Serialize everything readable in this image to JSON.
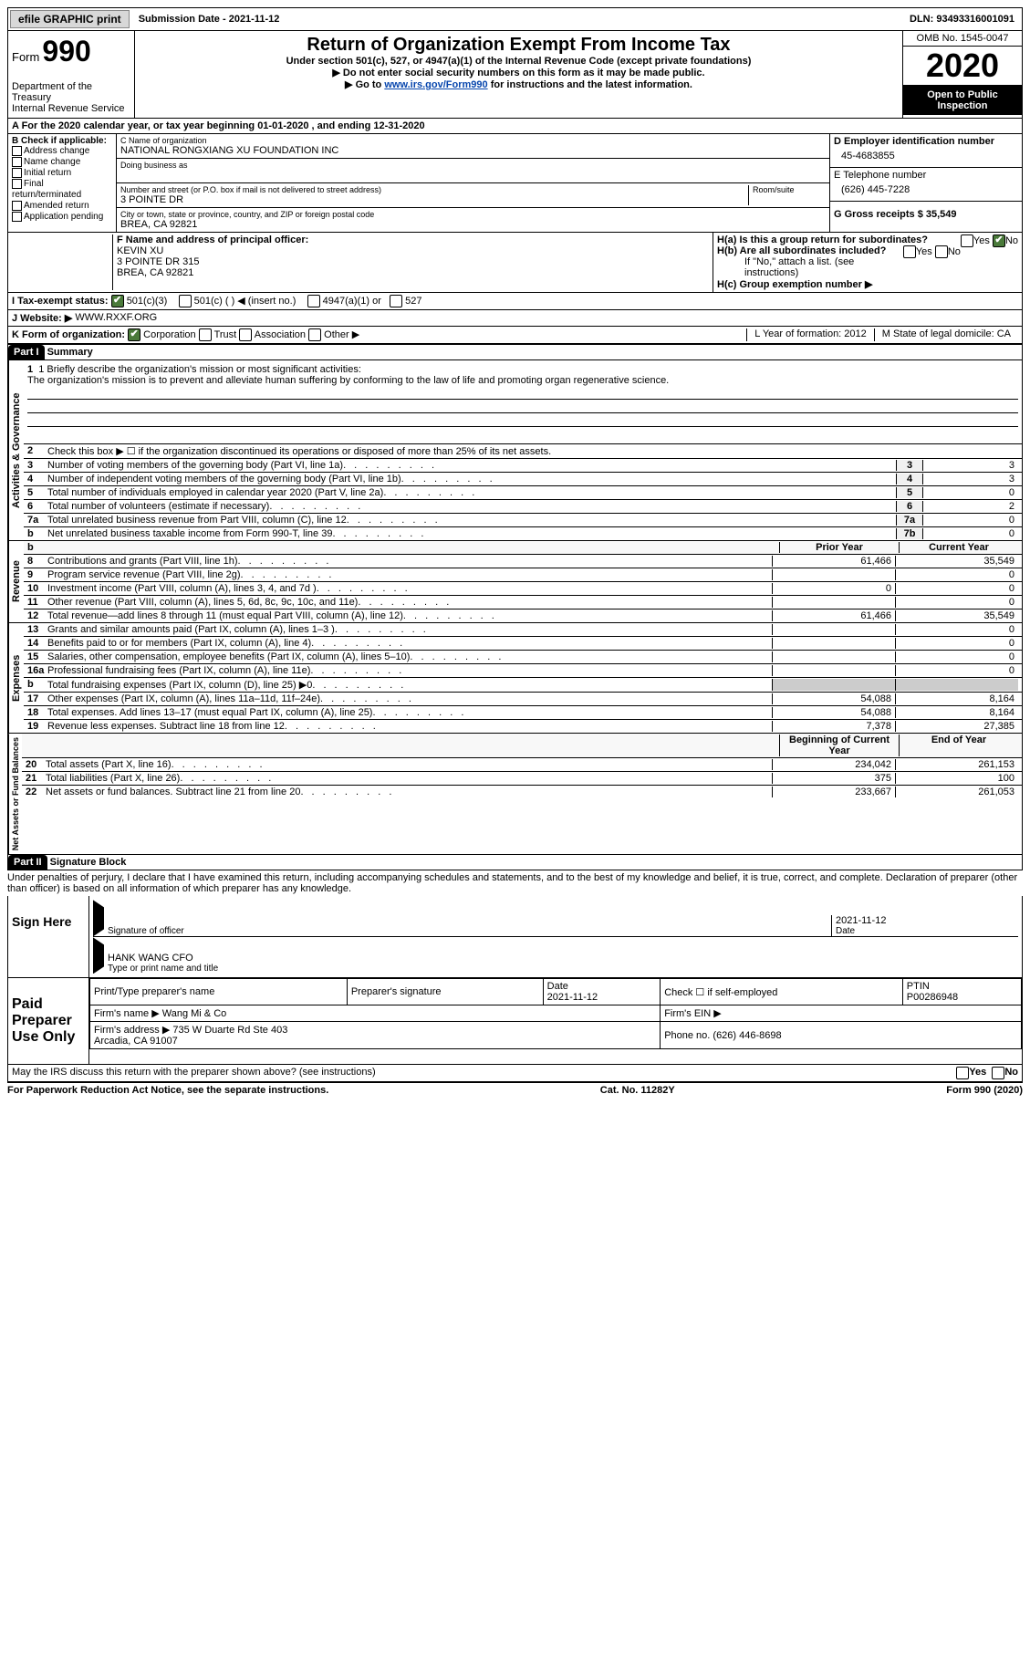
{
  "topbar": {
    "efile": "efile GRAPHIC print",
    "submission": "Submission Date - 2021-11-12",
    "dln": "DLN: 93493316001091"
  },
  "header": {
    "form_label": "Form",
    "form_number": "990",
    "dept": "Department of the Treasury\nInternal Revenue Service",
    "title": "Return of Organization Exempt From Income Tax",
    "subtitle": "Under section 501(c), 527, or 4947(a)(1) of the Internal Revenue Code (except private foundations)",
    "note1": "▶ Do not enter social security numbers on this form as it may be made public.",
    "note2_pre": "▶ Go to ",
    "note2_link": "www.irs.gov/Form990",
    "note2_post": " for instructions and the latest information.",
    "omb": "OMB No. 1545-0047",
    "year": "2020",
    "inspect": "Open to Public Inspection"
  },
  "lineA": "A For the 2020 calendar year, or tax year beginning 01-01-2020   , and ending 12-31-2020",
  "boxB": {
    "label": "B Check if applicable:",
    "items": [
      "Address change",
      "Name change",
      "Initial return",
      "Final return/terminated",
      "Amended return",
      "Application pending"
    ]
  },
  "boxC": {
    "name_label": "C Name of organization",
    "name": "NATIONAL RONGXIANG XU FOUNDATION INC",
    "dba_label": "Doing business as",
    "addr_label": "Number and street (or P.O. box if mail is not delivered to street address)",
    "room_label": "Room/suite",
    "addr": "3 POINTE DR",
    "city_label": "City or town, state or province, country, and ZIP or foreign postal code",
    "city": "BREA, CA  92821"
  },
  "boxD": {
    "label": "D Employer identification number",
    "val": "45-4683855"
  },
  "boxE": {
    "label": "E Telephone number",
    "val": "(626) 445-7228"
  },
  "boxG": {
    "label": "G Gross receipts $ 35,549"
  },
  "boxF": {
    "label": "F Name and address of principal officer:",
    "name": "KEVIN XU",
    "addr1": "3 POINTE DR 315",
    "addr2": "BREA, CA  92821"
  },
  "boxH": {
    "a": "H(a)  Is this a group return for subordinates?",
    "a_yes": "Yes",
    "a_no": "No",
    "b": "H(b)  Are all subordinates included?",
    "b_note": "If \"No,\" attach a list. (see instructions)",
    "c": "H(c)  Group exemption number ▶"
  },
  "lineI": {
    "label": "I   Tax-exempt status:",
    "o1": "501(c)(3)",
    "o2": "501(c) (   ) ◀ (insert no.)",
    "o3": "4947(a)(1) or",
    "o4": "527"
  },
  "lineJ": {
    "label": "J   Website: ▶",
    "val": "WWW.RXXF.ORG"
  },
  "lineK": {
    "label": "K Form of organization:",
    "o1": "Corporation",
    "o2": "Trust",
    "o3": "Association",
    "o4": "Other ▶"
  },
  "lineL": "L Year of formation: 2012",
  "lineM": "M State of legal domicile: CA",
  "part1": {
    "num": "Part I",
    "title": "Summary",
    "mission_label": "1   Briefly describe the organization's mission or most significant activities:",
    "mission": "The organization's mission is to prevent and alleviate human suffering by conforming to the law of life and promoting organ regenerative science.",
    "line2": "Check this box ▶ ☐  if the organization discontinued its operations or disposed of more than 25% of its net assets.",
    "rows_gov": [
      {
        "n": "3",
        "t": "Number of voting members of the governing body (Part VI, line 1a)",
        "b": "3",
        "v": "3"
      },
      {
        "n": "4",
        "t": "Number of independent voting members of the governing body (Part VI, line 1b)",
        "b": "4",
        "v": "3"
      },
      {
        "n": "5",
        "t": "Total number of individuals employed in calendar year 2020 (Part V, line 2a)",
        "b": "5",
        "v": "0"
      },
      {
        "n": "6",
        "t": "Total number of volunteers (estimate if necessary)",
        "b": "6",
        "v": "2"
      },
      {
        "n": "7a",
        "t": "Total unrelated business revenue from Part VIII, column (C), line 12",
        "b": "7a",
        "v": "0"
      },
      {
        "n": "b",
        "t": "Net unrelated business taxable income from Form 990-T, line 39",
        "b": "7b",
        "v": "0"
      }
    ],
    "hdr_prior": "Prior Year",
    "hdr_curr": "Current Year",
    "rows_rev": [
      {
        "n": "8",
        "t": "Contributions and grants (Part VIII, line 1h)",
        "p": "61,466",
        "c": "35,549"
      },
      {
        "n": "9",
        "t": "Program service revenue (Part VIII, line 2g)",
        "p": "",
        "c": "0"
      },
      {
        "n": "10",
        "t": "Investment income (Part VIII, column (A), lines 3, 4, and 7d )",
        "p": "0",
        "c": "0"
      },
      {
        "n": "11",
        "t": "Other revenue (Part VIII, column (A), lines 5, 6d, 8c, 9c, 10c, and 11e)",
        "p": "",
        "c": "0"
      },
      {
        "n": "12",
        "t": "Total revenue—add lines 8 through 11 (must equal Part VIII, column (A), line 12)",
        "p": "61,466",
        "c": "35,549"
      }
    ],
    "rows_exp": [
      {
        "n": "13",
        "t": "Grants and similar amounts paid (Part IX, column (A), lines 1–3 )",
        "p": "",
        "c": "0"
      },
      {
        "n": "14",
        "t": "Benefits paid to or for members (Part IX, column (A), line 4)",
        "p": "",
        "c": "0"
      },
      {
        "n": "15",
        "t": "Salaries, other compensation, employee benefits (Part IX, column (A), lines 5–10)",
        "p": "",
        "c": "0"
      },
      {
        "n": "16a",
        "t": "Professional fundraising fees (Part IX, column (A), line 11e)",
        "p": "",
        "c": "0"
      },
      {
        "n": "b",
        "t": "Total fundraising expenses (Part IX, column (D), line 25) ▶0",
        "p": "SHADE",
        "c": "SHADE"
      },
      {
        "n": "17",
        "t": "Other expenses (Part IX, column (A), lines 11a–11d, 11f–24e)",
        "p": "54,088",
        "c": "8,164"
      },
      {
        "n": "18",
        "t": "Total expenses. Add lines 13–17 (must equal Part IX, column (A), line 25)",
        "p": "54,088",
        "c": "8,164"
      },
      {
        "n": "19",
        "t": "Revenue less expenses. Subtract line 18 from line 12",
        "p": "7,378",
        "c": "27,385"
      }
    ],
    "hdr_beg": "Beginning of Current Year",
    "hdr_end": "End of Year",
    "rows_net": [
      {
        "n": "20",
        "t": "Total assets (Part X, line 16)",
        "p": "234,042",
        "c": "261,153"
      },
      {
        "n": "21",
        "t": "Total liabilities (Part X, line 26)",
        "p": "375",
        "c": "100"
      },
      {
        "n": "22",
        "t": "Net assets or fund balances. Subtract line 21 from line 20",
        "p": "233,667",
        "c": "261,053"
      }
    ],
    "vtabs": {
      "gov": "Activities & Governance",
      "rev": "Revenue",
      "exp": "Expenses",
      "net": "Net Assets or Fund Balances"
    }
  },
  "part2": {
    "num": "Part II",
    "title": "Signature Block",
    "penalties": "Under penalties of perjury, I declare that I have examined this return, including accompanying schedules and statements, and to the best of my knowledge and belief, it is true, correct, and complete. Declaration of preparer (other than officer) is based on all information of which preparer has any knowledge."
  },
  "sign": {
    "label": "Sign Here",
    "sig_label": "Signature of officer",
    "date_label": "Date",
    "date": "2021-11-12",
    "name": "HANK WANG  CFO",
    "name_label": "Type or print name and title"
  },
  "preparer": {
    "label": "Paid Preparer Use Only",
    "h1": "Print/Type preparer's name",
    "h2": "Preparer's signature",
    "h3": "Date",
    "h3v": "2021-11-12",
    "h4": "Check ☐ if self-employed",
    "h5": "PTIN",
    "h5v": "P00286948",
    "firm_name_label": "Firm's name    ▶",
    "firm_name": "Wang Mi & Co",
    "firm_ein_label": "Firm's EIN ▶",
    "firm_addr_label": "Firm's address ▶",
    "firm_addr": "735 W Duarte Rd Ste 403\nArcadia, CA  91007",
    "phone_label": "Phone no.",
    "phone": "(626) 446-8698"
  },
  "discuss": "May the IRS discuss this return with the preparer shown above? (see instructions)",
  "discuss_yes": "Yes",
  "discuss_no": "No",
  "footer": {
    "left": "For Paperwork Reduction Act Notice, see the separate instructions.",
    "mid": "Cat. No. 11282Y",
    "right": "Form 990 (2020)"
  }
}
